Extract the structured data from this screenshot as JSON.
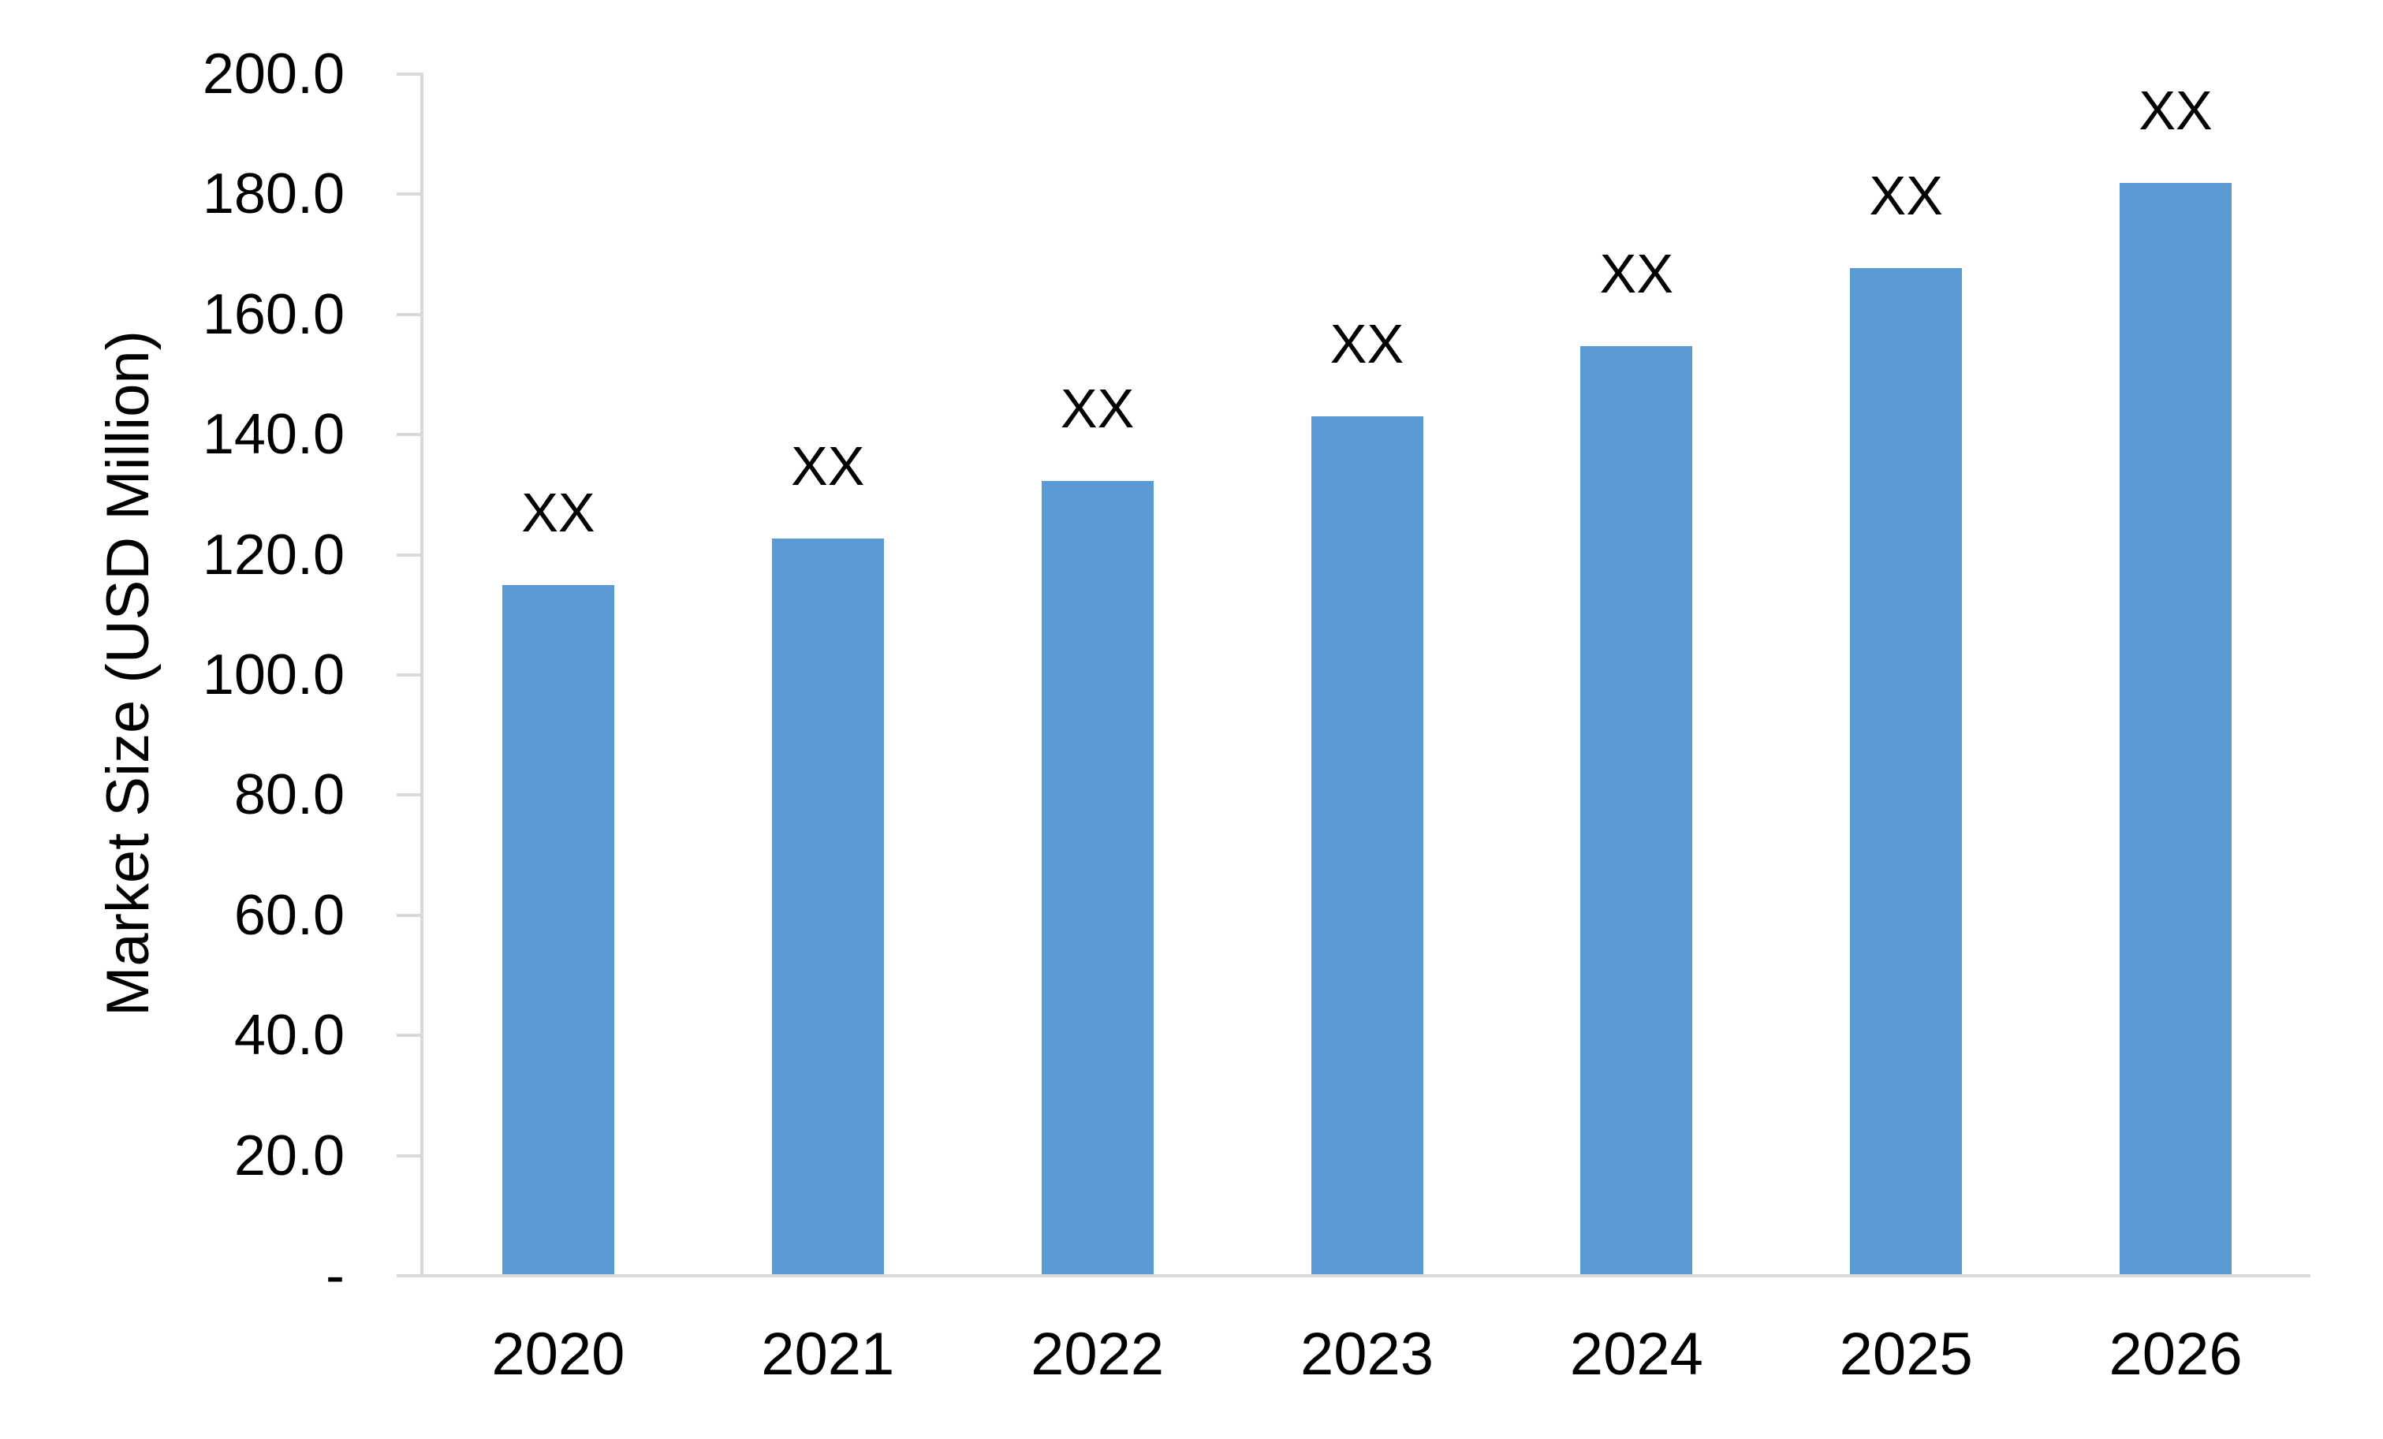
{
  "chart_data": {
    "type": "bar",
    "title": "",
    "xlabel": "",
    "ylabel": "Market Size (USD Million)",
    "categories": [
      "2020",
      "2021",
      "2022",
      "2023",
      "2024",
      "2025",
      "2026"
    ],
    "values": [
      114.7,
      122.5,
      132.0,
      142.8,
      154.5,
      167.5,
      181.6
    ],
    "bar_labels": [
      "XX",
      "XX",
      "XX",
      "XX",
      "XX",
      "XX",
      "XX"
    ],
    "y_ticks": [
      "-",
      "20.0",
      "40.0",
      "60.0",
      "80.0",
      "100.0",
      "120.0",
      "140.0",
      "160.0",
      "180.0",
      "200.0"
    ],
    "ylim": [
      0,
      200
    ],
    "grid": false,
    "legend_position": "none",
    "bar_color": "#5B9BD5",
    "axis_color": "#D9D9D9",
    "text_color": "#000000"
  }
}
